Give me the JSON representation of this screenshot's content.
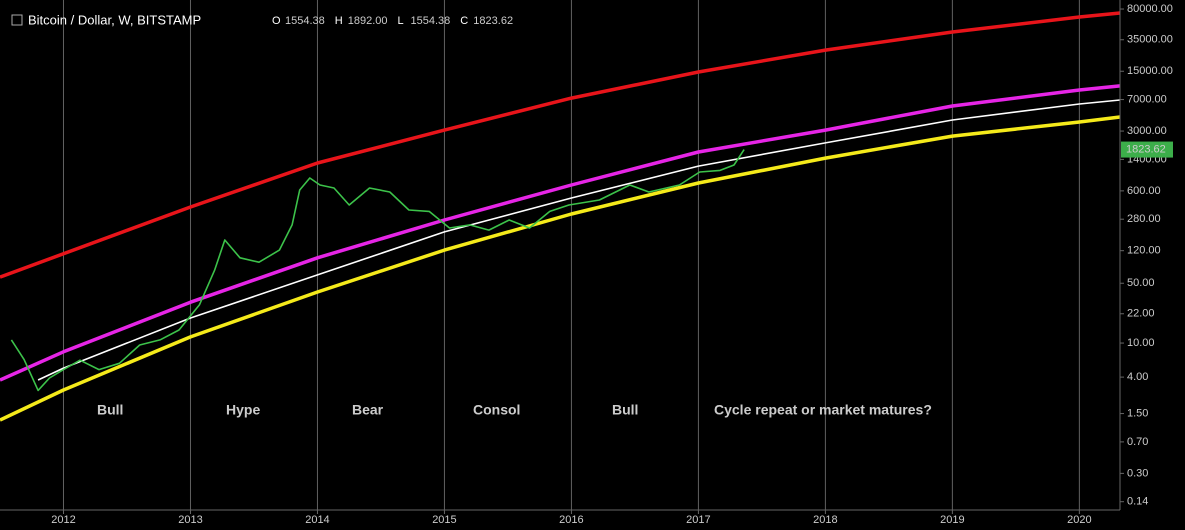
{
  "header": {
    "title": "Bitcoin / Dollar, W, BITSTAMP",
    "ohlc": [
      {
        "key": "O",
        "value": "1554.38"
      },
      {
        "key": "H",
        "value": "1892.00"
      },
      {
        "key": "L",
        "value": "1554.38"
      },
      {
        "key": "C",
        "value": "1823.62"
      }
    ]
  },
  "chart_data": {
    "type": "line",
    "log_scale": true,
    "grid": "x",
    "xlim": [
      2011.5,
      2020.32
    ],
    "ylim": [
      0.112,
      102000
    ],
    "xticks": [
      2012,
      2013,
      2014,
      2015,
      2016,
      2017,
      2018,
      2019,
      2020
    ],
    "yticks": [
      {
        "value": 0.14,
        "label": "0.14"
      },
      {
        "value": 0.3,
        "label": "0.30"
      },
      {
        "value": 0.7,
        "label": "0.70"
      },
      {
        "value": 1.5,
        "label": "1.50"
      },
      {
        "value": 4,
        "label": "4.00"
      },
      {
        "value": 10,
        "label": "10.00"
      },
      {
        "value": 22,
        "label": "22.00"
      },
      {
        "value": 50,
        "label": "50.00"
      },
      {
        "value": 120,
        "label": "120.00"
      },
      {
        "value": 280,
        "label": "280.00"
      },
      {
        "value": 600,
        "label": "600.00"
      },
      {
        "value": 1400,
        "label": "1400.00"
      },
      {
        "value": 3000,
        "label": "3000.00"
      },
      {
        "value": 7000,
        "label": "7000.00"
      },
      {
        "value": 15000,
        "label": "15000.00"
      },
      {
        "value": 35000,
        "label": "35000.00"
      },
      {
        "value": 80000,
        "label": "80000.00"
      }
    ],
    "series": [
      {
        "color": "#3cc24a",
        "x": [
          2011.59,
          2011.69,
          2011.8,
          2011.89,
          2012.0,
          2012.13,
          2012.28,
          2012.44,
          2012.6,
          2012.76,
          2012.91,
          2013.07,
          2013.19,
          2013.27,
          2013.39,
          2013.54,
          2013.7,
          2013.8,
          2013.86,
          2013.94,
          2014.02,
          2014.13,
          2014.25,
          2014.41,
          2014.57,
          2014.72,
          2014.88,
          2015.04,
          2015.2,
          2015.35,
          2015.51,
          2015.67,
          2015.83,
          2015.98,
          2016.22,
          2016.46,
          2016.61,
          2016.85,
          2017.01,
          2017.17,
          2017.28,
          2017.36
        ],
        "values": [
          10.9,
          6.4,
          2.8,
          3.9,
          4.9,
          6.3,
          4.9,
          5.8,
          9.5,
          10.9,
          14.2,
          27.9,
          71,
          160,
          99,
          88,
          122,
          240,
          615,
          849,
          703,
          648,
          410,
          648,
          582,
          359,
          345,
          221,
          240,
          209,
          274,
          221,
          345,
          410,
          470,
          703,
          582,
          703,
          998,
          1040,
          1205,
          1823.62
        ]
      },
      {
        "color": "#e8141a",
        "x": [
          2011.5,
          2013.0,
          2014.0,
          2015.0,
          2016.0,
          2017.0,
          2018.0,
          2019.0,
          2020.0,
          2020.32
        ],
        "values": [
          59,
          389,
          1270,
          3080,
          7290,
          14700,
          26500,
          43100,
          64500,
          71800
        ]
      },
      {
        "color": "#e625e6",
        "x": [
          2011.5,
          2012.0,
          2013.0,
          2014.0,
          2015.0,
          2016.0,
          2017.0,
          2018.0,
          2019.0,
          2020.0,
          2020.32
        ],
        "values": [
          3.7,
          7.9,
          30,
          99,
          274,
          703,
          1710,
          3080,
          5890,
          9060,
          10100
        ]
      },
      {
        "color": "#ffffff",
        "x": [
          2011.8,
          2012.0,
          2013.0,
          2014.0,
          2015.0,
          2016.0,
          2017.0,
          2018.0,
          2019.0,
          2020.0,
          2020.32
        ],
        "values": [
          3.7,
          5.1,
          19.6,
          62.5,
          199,
          495,
          1170,
          2180,
          4040,
          6210,
          6920
        ]
      },
      {
        "color": "#f5ea1a",
        "x": [
          2011.5,
          2012.0,
          2013.0,
          2014.0,
          2015.0,
          2016.0,
          2017.0,
          2018.0,
          2019.0,
          2020.0,
          2020.32
        ],
        "values": [
          1.26,
          2.83,
          11.8,
          39.5,
          122,
          322,
          741,
          1450,
          2620,
          3830,
          4380
        ]
      }
    ],
    "annotations": [
      {
        "text": "Bull",
        "color": "#2fd22f"
      },
      {
        "text": "Hype",
        "color": "#2fd22f"
      },
      {
        "text": "Bear",
        "color": "#e8141a"
      },
      {
        "text": "Consol",
        "color": "#ffffff"
      },
      {
        "text": "Bull",
        "color": "#2fd22f"
      },
      {
        "text": "Cycle repeat or market matures?",
        "color": "#2fd22f"
      }
    ]
  }
}
